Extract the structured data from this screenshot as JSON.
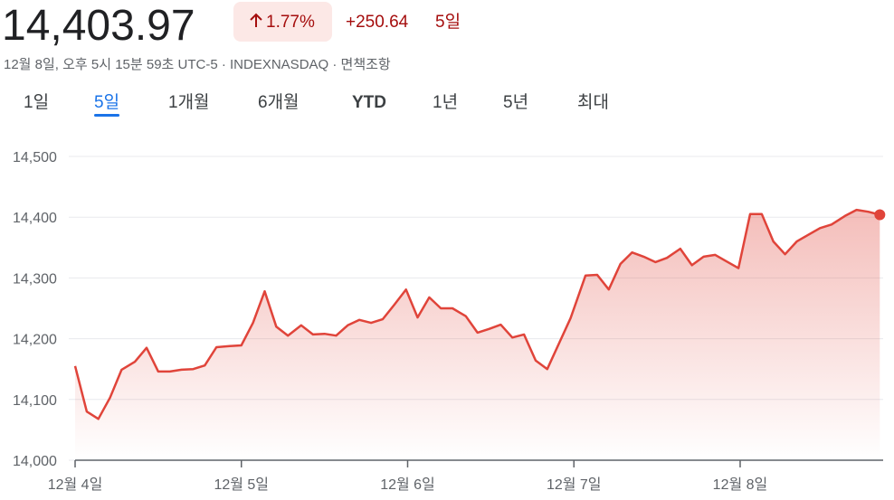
{
  "header": {
    "price": "14,403.97",
    "change_pct": "1.77%",
    "change": "+250.64",
    "period": "5일",
    "subtitle": "12월 8일, 오후 5시 15분 59초 UTC-5 · INDEXNASDAQ · 면책조항"
  },
  "tabs": [
    "1일",
    "5일",
    "1개월",
    "6개월",
    "YTD",
    "1년",
    "5년",
    "최대"
  ],
  "selected_tab": 1,
  "chart_data": {
    "type": "line",
    "color": "#e0443a",
    "grid": true,
    "x": [
      0,
      0.07,
      0.14,
      0.21,
      0.28,
      0.36,
      0.43,
      0.5,
      0.57,
      0.64,
      0.71,
      0.78,
      0.85,
      0.93,
      1.0,
      1.07,
      1.14,
      1.21,
      1.28,
      1.36,
      1.43,
      1.5,
      1.57,
      1.64,
      1.71,
      1.78,
      1.85,
      1.92,
      1.99,
      2.06,
      2.13,
      2.2,
      2.27,
      2.35,
      2.42,
      2.49,
      2.56,
      2.63,
      2.7,
      2.77,
      2.84,
      2.91,
      2.98,
      3.07,
      3.14,
      3.21,
      3.28,
      3.35,
      3.42,
      3.49,
      3.56,
      3.64,
      3.71,
      3.78,
      3.85,
      3.92,
      3.99,
      4.06,
      4.13,
      4.2,
      4.27,
      4.34,
      4.41,
      4.48,
      4.55,
      4.63,
      4.7,
      4.77,
      4.84
    ],
    "values": [
      14155,
      14080,
      14068,
      14103,
      14149,
      14162,
      14185,
      14146,
      14146,
      14149,
      14150,
      14156,
      14186,
      14188,
      14189,
      14226,
      14278,
      14220,
      14205,
      14222,
      14207,
      14208,
      14205,
      14222,
      14231,
      14226,
      14232,
      14256,
      14281,
      14235,
      14268,
      14250,
      14250,
      14237,
      14210,
      14216,
      14223,
      14202,
      14207,
      14164,
      14150,
      14192,
      14234,
      14304,
      14305,
      14281,
      14323,
      14342,
      14335,
      14326,
      14333,
      14348,
      14321,
      14335,
      14338,
      14327,
      14316,
      14405,
      14405,
      14360,
      14339,
      14360,
      14371,
      14382,
      14388,
      14402,
      14412,
      14409,
      14403.97
    ],
    "xlim": [
      0,
      4.86
    ],
    "xticks": [
      {
        "value": 0,
        "label": "12월 4일"
      },
      {
        "value": 1,
        "label": "12월 5일"
      },
      {
        "value": 2,
        "label": "12월 6일"
      },
      {
        "value": 3,
        "label": "12월 7일"
      },
      {
        "value": 4,
        "label": "12월 8일"
      }
    ],
    "ylim": [
      14000,
      14500
    ],
    "yticks": [
      {
        "value": 14000,
        "label": "14,000"
      },
      {
        "value": 14100,
        "label": "14,100"
      },
      {
        "value": 14200,
        "label": "14,200"
      },
      {
        "value": 14300,
        "label": "14,300"
      },
      {
        "value": 14400,
        "label": "14,400"
      },
      {
        "value": 14500,
        "label": "14,500"
      }
    ]
  }
}
